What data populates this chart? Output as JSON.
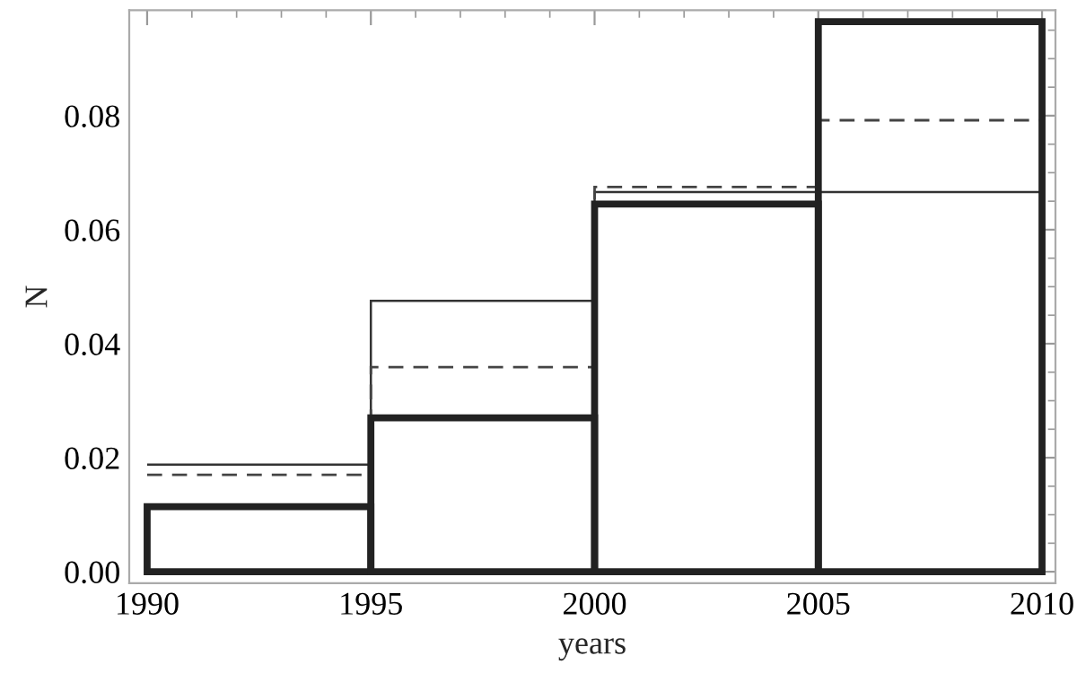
{
  "chart_data": {
    "type": "histogram",
    "xlabel": "years",
    "ylabel": "N",
    "bins": [
      1990,
      1995,
      2000,
      2005,
      2010
    ],
    "series": [
      {
        "color": "#333333",
        "line_style": "solid",
        "values": [
          0.0188,
          0.0475,
          0.0666,
          0.0666
        ]
      },
      {
        "color": "#444444",
        "line_style": "dashed",
        "values": [
          0.017,
          0.0359,
          0.0675,
          0.0792
        ]
      },
      {
        "color": "#222222",
        "line_style": "solid",
        "values": [
          0.0114,
          0.027,
          0.0645,
          0.0965
        ]
      }
    ],
    "xlim": [
      1989.6,
      2010.3
    ],
    "xticks": [
      1990,
      1995,
      2000,
      2005,
      2010
    ],
    "ylim": [
      -0.002,
      0.0985
    ],
    "yticks": [
      {
        "value": 0,
        "label": "0.00"
      },
      {
        "value": 0.02,
        "label": "0.02"
      },
      {
        "value": 0.04,
        "label": "0.04"
      },
      {
        "value": 0.06,
        "label": "0.06"
      },
      {
        "value": 0.08,
        "label": "0.08"
      }
    ],
    "grid": false,
    "legend": false
  }
}
